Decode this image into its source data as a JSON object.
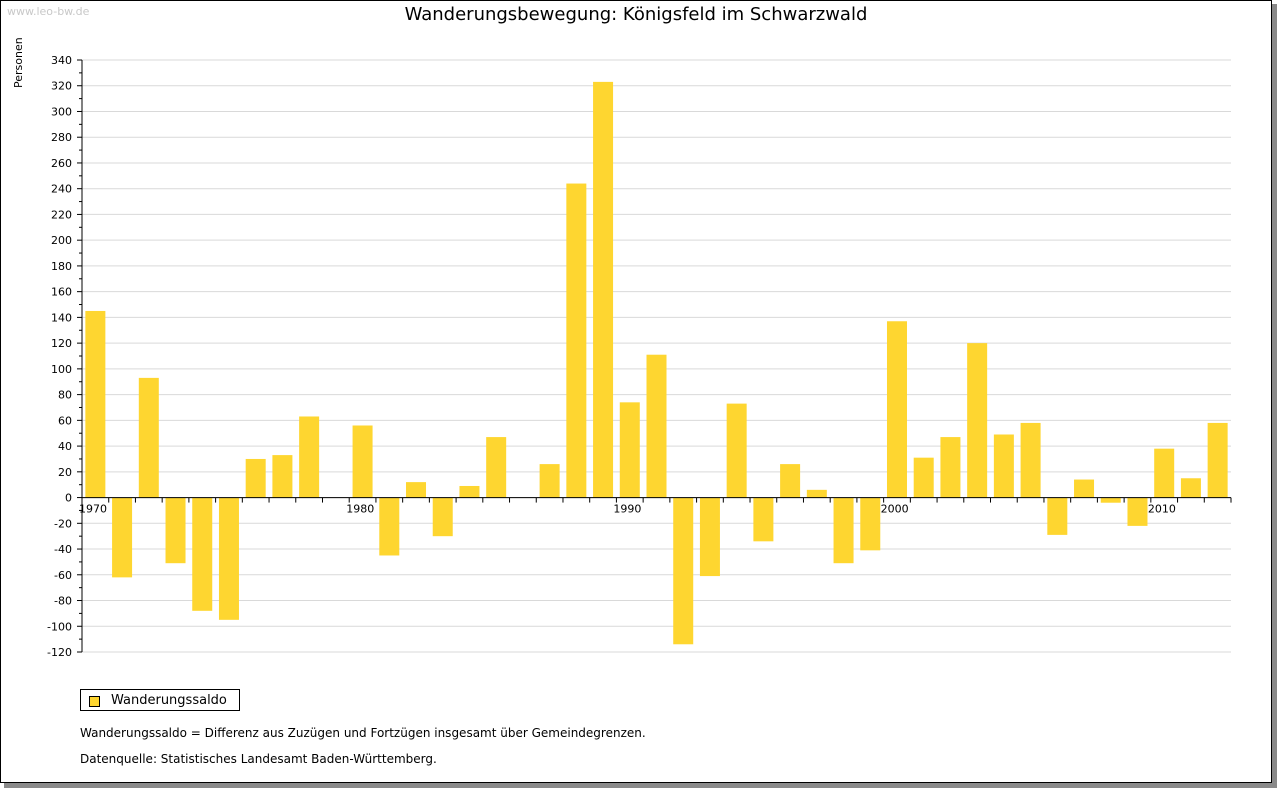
{
  "watermark": "www.leo-bw.de",
  "colors": {
    "bar": "#fed630",
    "grid": "#d9d9d9",
    "axis": "#000000"
  },
  "chart_data": {
    "type": "bar",
    "title": "Wanderungsbewegung: Königsfeld im Schwarzwald",
    "ylabel": "Personen",
    "xlabel": "",
    "ylim": [
      -120,
      340
    ],
    "y_ticks": [
      340,
      320,
      300,
      280,
      260,
      240,
      220,
      200,
      180,
      160,
      140,
      120,
      100,
      80,
      60,
      40,
      20,
      0,
      -20,
      -40,
      -60,
      -80,
      -100,
      -120
    ],
    "x_tick_labels": [
      "1970",
      "1980",
      "1990",
      "2000",
      "2010"
    ],
    "grid": true,
    "legend_position": "bottom-left",
    "categories": [
      1970,
      1971,
      1972,
      1973,
      1974,
      1975,
      1976,
      1977,
      1978,
      1979,
      1980,
      1981,
      1982,
      1983,
      1984,
      1985,
      1986,
      1987,
      1988,
      1989,
      1990,
      1991,
      1992,
      1993,
      1994,
      1995,
      1996,
      1997,
      1998,
      1999,
      2000,
      2001,
      2002,
      2003,
      2004,
      2005,
      2006,
      2007,
      2008,
      2009,
      2010,
      2011,
      2012
    ],
    "series": [
      {
        "name": "Wanderungssaldo",
        "values": [
          145,
          -62,
          93,
          -51,
          -88,
          -95,
          30,
          33,
          63,
          0,
          56,
          -45,
          12,
          -30,
          9,
          47,
          0,
          26,
          244,
          323,
          74,
          111,
          -114,
          -61,
          73,
          -34,
          26,
          6,
          -51,
          -41,
          137,
          31,
          47,
          120,
          49,
          58,
          -29,
          14,
          -4,
          -22,
          38,
          15,
          58
        ]
      }
    ]
  },
  "notes": {
    "definition": "Wanderungssaldo = Differenz aus Zuzügen und Fortzügen insgesamt über Gemeindegrenzen.",
    "source": "Datenquelle: Statistisches Landesamt Baden-Württemberg."
  }
}
